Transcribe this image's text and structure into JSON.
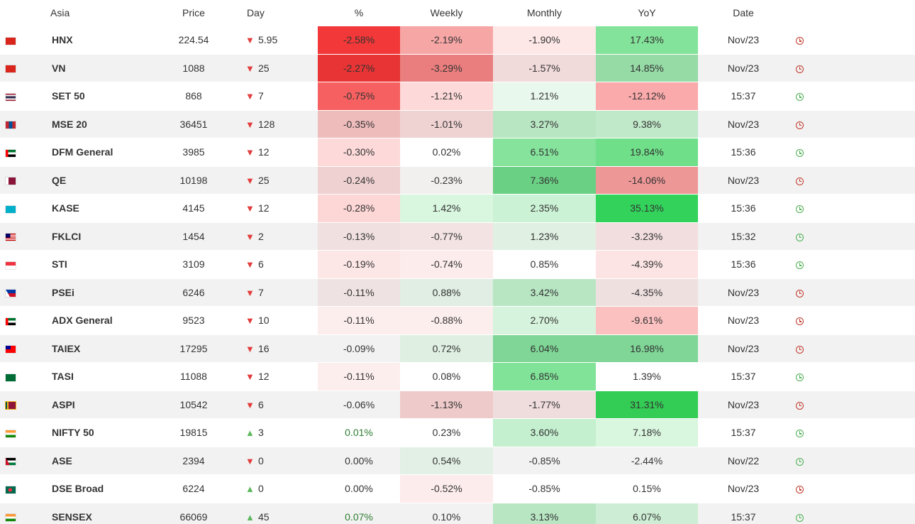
{
  "headers": {
    "region": "Asia",
    "price": "Price",
    "day": "Day",
    "percent": "%",
    "weekly": "Weekly",
    "monthly": "Monthly",
    "yoy": "YoY",
    "date": "Date"
  },
  "colors": {
    "negative_arrow": "#e23b3b",
    "positive_arrow": "#5cb85c",
    "market_open_clock": "#4caf50",
    "market_closed_clock": "#c0392b"
  },
  "rows": [
    {
      "flag": "vietnam-flag",
      "name": "HNX",
      "price": "224.54",
      "dir": "down",
      "day": "5.95",
      "pct": "-2.58%",
      "weekly": "-2.19%",
      "monthly": "-1.90%",
      "yoy": "17.43%",
      "date": "Nov/23",
      "status": "closed",
      "bg": {
        "pct": "#f23838",
        "weekly": "#f7a6a6",
        "monthly": "#fde7e7",
        "yoy": "#84e39a"
      }
    },
    {
      "flag": "vietnam-flag",
      "name": "VN",
      "price": "1088",
      "dir": "down",
      "day": "25",
      "pct": "-2.27%",
      "weekly": "-3.29%",
      "monthly": "-1.57%",
      "yoy": "14.85%",
      "date": "Nov/23",
      "status": "closed",
      "bg": {
        "pct": "#e83434",
        "weekly": "#ea7e7e",
        "monthly": "#f1dada",
        "yoy": "#96dba6"
      }
    },
    {
      "flag": "thailand-flag",
      "name": "SET 50",
      "price": "868",
      "dir": "down",
      "day": "7",
      "pct": "-0.75%",
      "weekly": "-1.21%",
      "monthly": "1.21%",
      "yoy": "-12.12%",
      "date": "15:37",
      "status": "live",
      "bg": {
        "pct": "#f66060",
        "weekly": "#fdd9d9",
        "monthly": "#e8f8ec",
        "yoy": "#faaaaa"
      }
    },
    {
      "flag": "mongolia-flag",
      "name": "MSE 20",
      "price": "36451",
      "dir": "down",
      "day": "128",
      "pct": "-0.35%",
      "weekly": "-1.01%",
      "monthly": "3.27%",
      "yoy": "9.38%",
      "date": "Nov/23",
      "status": "closed",
      "bg": {
        "pct": "#efbcbc",
        "weekly": "#efd2d2",
        "monthly": "#b8e6c3",
        "yoy": "#c0e9c9"
      }
    },
    {
      "flag": "uae-flag",
      "name": "DFM General",
      "price": "3985",
      "dir": "down",
      "day": "12",
      "pct": "-0.30%",
      "weekly": "0.02%",
      "monthly": "6.51%",
      "yoy": "19.84%",
      "date": "15:36",
      "status": "live",
      "bg": {
        "pct": "#fdd9d9",
        "weekly": "#ffffff",
        "monthly": "#85e39c",
        "yoy": "#6fe089"
      }
    },
    {
      "flag": "qatar-flag",
      "name": "QE",
      "price": "10198",
      "dir": "down",
      "day": "25",
      "pct": "-0.24%",
      "weekly": "-0.23%",
      "monthly": "7.36%",
      "yoy": "-14.06%",
      "date": "Nov/23",
      "status": "closed",
      "bg": {
        "pct": "#efd1d1",
        "weekly": "#f2efef",
        "monthly": "#6ad184",
        "yoy": "#ee9797"
      }
    },
    {
      "flag": "kazakhstan-flag",
      "name": "KASE",
      "price": "4145",
      "dir": "down",
      "day": "12",
      "pct": "-0.28%",
      "weekly": "1.42%",
      "monthly": "2.35%",
      "yoy": "35.13%",
      "date": "15:36",
      "status": "live",
      "bg": {
        "pct": "#fdd6d6",
        "weekly": "#d9f6df",
        "monthly": "#ccf2d5",
        "yoy": "#33d35b"
      }
    },
    {
      "flag": "malaysia-flag",
      "name": "FKLCI",
      "price": "1454",
      "dir": "down",
      "day": "2",
      "pct": "-0.13%",
      "weekly": "-0.77%",
      "monthly": "1.23%",
      "yoy": "-3.23%",
      "date": "15:32",
      "status": "live",
      "bg": {
        "pct": "#f0e0e0",
        "weekly": "#f3e3e3",
        "monthly": "#e0f1e3",
        "yoy": "#f2dede"
      }
    },
    {
      "flag": "singapore-flag",
      "name": "STI",
      "price": "3109",
      "dir": "down",
      "day": "6",
      "pct": "-0.19%",
      "weekly": "-0.74%",
      "monthly": "0.85%",
      "yoy": "-4.39%",
      "date": "15:36",
      "status": "live",
      "bg": {
        "pct": "#fde6e6",
        "weekly": "#fdecec",
        "monthly": "#ffffff",
        "yoy": "#fde4e4"
      }
    },
    {
      "flag": "philippines-flag",
      "name": "PSEi",
      "price": "6246",
      "dir": "down",
      "day": "7",
      "pct": "-0.11%",
      "weekly": "0.88%",
      "monthly": "3.42%",
      "yoy": "-4.35%",
      "date": "Nov/23",
      "status": "closed",
      "bg": {
        "pct": "#efe2e2",
        "weekly": "#e0eee3",
        "monthly": "#b8e6c3",
        "yoy": "#efe0e0"
      }
    },
    {
      "flag": "uae-flag",
      "name": "ADX General",
      "price": "9523",
      "dir": "down",
      "day": "10",
      "pct": "-0.11%",
      "weekly": "-0.88%",
      "monthly": "2.70%",
      "yoy": "-9.61%",
      "date": "Nov/23",
      "status": "closed",
      "bg": {
        "pct": "#fdeeee",
        "weekly": "#fdeeee",
        "monthly": "#d6f4dd",
        "yoy": "#fbc0c0"
      }
    },
    {
      "flag": "taiwan-flag",
      "name": "TAIEX",
      "price": "17295",
      "dir": "down",
      "day": "16",
      "pct": "-0.09%",
      "weekly": "0.72%",
      "monthly": "6.04%",
      "yoy": "16.98%",
      "date": "Nov/23",
      "status": "closed",
      "bg": {
        "pct": "#f2f2f2",
        "weekly": "#dff0e2",
        "monthly": "#7fd696",
        "yoy": "#7fd696"
      }
    },
    {
      "flag": "saudi-flag",
      "name": "TASI",
      "price": "11088",
      "dir": "down",
      "day": "12",
      "pct": "-0.11%",
      "weekly": "0.08%",
      "monthly": "6.85%",
      "yoy": "1.39%",
      "date": "15:37",
      "status": "live",
      "bg": {
        "pct": "#fdeeee",
        "weekly": "#ffffff",
        "monthly": "#80e398",
        "yoy": "#ffffff"
      }
    },
    {
      "flag": "srilanka-flag",
      "name": "ASPI",
      "price": "10542",
      "dir": "down",
      "day": "6",
      "pct": "-0.06%",
      "weekly": "-1.13%",
      "monthly": "-1.77%",
      "yoy": "31.31%",
      "date": "Nov/23",
      "status": "closed",
      "bg": {
        "pct": "#f2f2f2",
        "weekly": "#efcaca",
        "monthly": "#efdcdc",
        "yoy": "#33cc55"
      }
    },
    {
      "flag": "india-flag",
      "name": "NIFTY 50",
      "price": "19815",
      "dir": "up",
      "day": "3",
      "pct": "0.01%",
      "weekly": "0.23%",
      "monthly": "3.60%",
      "yoy": "7.18%",
      "date": "15:37",
      "status": "live",
      "bg": {
        "pct": "#ffffff",
        "weekly": "#ffffff",
        "monthly": "#c4f0cf",
        "yoy": "#d9f6df"
      }
    },
    {
      "flag": "jordan-flag",
      "name": "ASE",
      "price": "2394",
      "dir": "down",
      "day": "0",
      "pct": "0.00%",
      "weekly": "0.54%",
      "monthly": "-0.85%",
      "yoy": "-2.44%",
      "date": "Nov/22",
      "status": "live",
      "bg": {
        "pct": "#f2f2f2",
        "weekly": "#e3f0e6",
        "monthly": "#f2f2f2",
        "yoy": "#f2f2f2"
      }
    },
    {
      "flag": "bangladesh-flag",
      "name": "DSE Broad",
      "price": "6224",
      "dir": "up",
      "day": "0",
      "pct": "0.00%",
      "weekly": "-0.52%",
      "monthly": "-0.85%",
      "yoy": "0.15%",
      "date": "Nov/23",
      "status": "closed",
      "bg": {
        "pct": "#ffffff",
        "weekly": "#fdecec",
        "monthly": "#ffffff",
        "yoy": "#ffffff"
      }
    },
    {
      "flag": "india-flag",
      "name": "SENSEX",
      "price": "66069",
      "dir": "up",
      "day": "45",
      "pct": "0.07%",
      "weekly": "0.10%",
      "monthly": "3.13%",
      "yoy": "6.07%",
      "date": "15:37",
      "status": "live",
      "bg": {
        "pct": "#f2f2f2",
        "weekly": "#f2f2f2",
        "monthly": "#b8e6c3",
        "yoy": "#cdeed4"
      }
    }
  ]
}
